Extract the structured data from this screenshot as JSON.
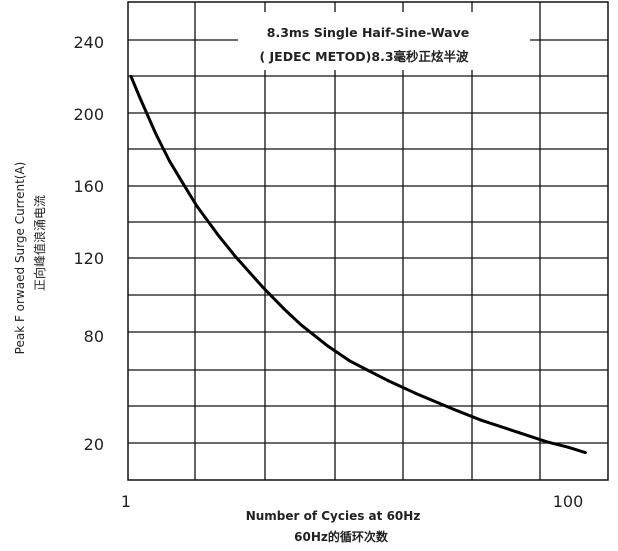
{
  "chart_data": {
    "type": "line",
    "title": "",
    "annotation": [
      "8.3ms Single Haif-Sine-Wave",
      "( JEDEC METOD)8.3毫秒正炫半波"
    ],
    "xlabel": [
      "Number of Cycies at 60Hz",
      "60Hz的循环次数"
    ],
    "ylabel": [
      "Peak F orwaed Surge Current(A)",
      "正向峰值浪涌电流"
    ],
    "x_scale": "log",
    "xlim": [
      1,
      120
    ],
    "x_ticks": [
      {
        "value": 1,
        "label": "1"
      },
      {
        "value": 100,
        "label": "100"
      }
    ],
    "y_ticks": [
      {
        "label": "240"
      },
      {
        "label": "200"
      },
      {
        "label": "160"
      },
      {
        "label": "120"
      },
      {
        "label": "80"
      },
      {
        "label": "20"
      }
    ],
    "grid": true,
    "series": [
      {
        "color": "#000000",
        "x": [
          1,
          1.1,
          1.3,
          1.5,
          1.7,
          2,
          2.5,
          3,
          4,
          5,
          6,
          8,
          10,
          15,
          20,
          30,
          40,
          60,
          80,
          100,
          120
        ],
        "y": [
          222,
          210,
          190,
          175,
          164,
          150,
          134,
          122,
          105,
          93,
          84,
          72,
          64,
          53,
          46,
          37,
          31,
          24,
          19,
          16,
          13
        ]
      }
    ]
  }
}
